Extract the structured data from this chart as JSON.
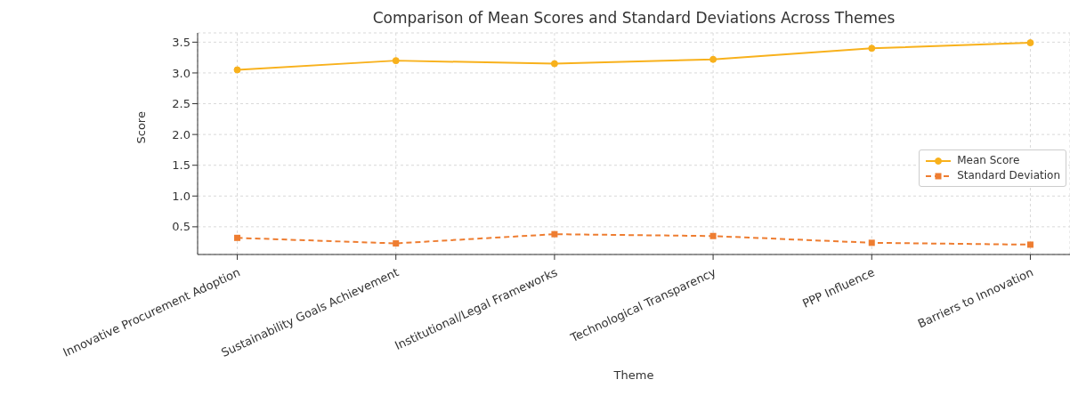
{
  "chart_data": {
    "type": "line",
    "title": "Comparison of Mean Scores and Standard Deviations Across Themes",
    "xlabel": "Theme",
    "ylabel": "Score",
    "categories": [
      "Innovative Procurement Adoption",
      "Sustainability Goals Achievement",
      "Institutional/Legal Frameworks",
      "Technological Transparency",
      "PPP Influence",
      "Barriers to Innovation"
    ],
    "series": [
      {
        "name": "Mean Score",
        "color": "#f8b11c",
        "values": [
          3.05,
          3.2,
          3.15,
          3.22,
          3.4,
          3.49
        ],
        "marker": "circle",
        "line_style": "solid"
      },
      {
        "name": "Standard Deviation",
        "color": "#ee7d31",
        "values": [
          0.32,
          0.23,
          0.38,
          0.35,
          0.24,
          0.21
        ],
        "marker": "square",
        "line_style": "dashed"
      }
    ],
    "ylim": [
      0.05,
      3.65
    ],
    "yticks": [
      0.5,
      {
        "value": 1,
        "label": "1.0"
      },
      1.5,
      {
        "value": 2,
        "label": "2.0"
      },
      2.5,
      {
        "value": 3,
        "label": "3.0"
      },
      3.5
    ],
    "grid": true,
    "legend": "right"
  }
}
